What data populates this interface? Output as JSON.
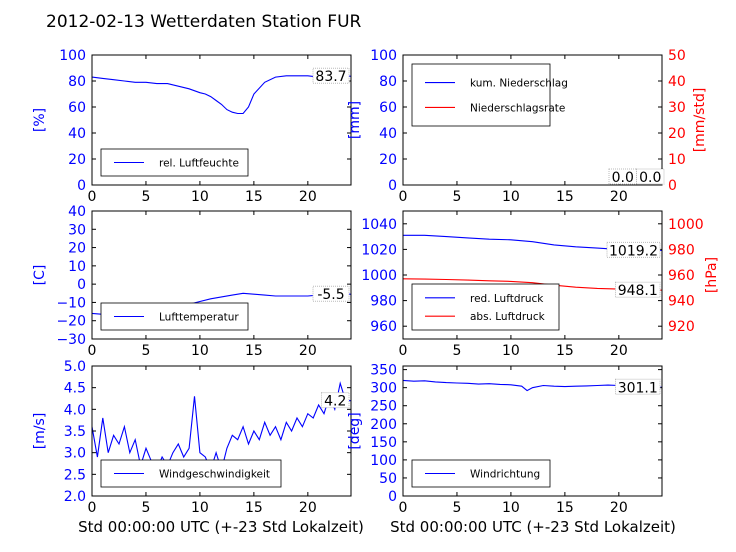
{
  "title": "2012-02-13 Wetterdaten Station FUR",
  "xlabel": "Std 00:00:00 UTC (+-23 Std Lokalzeit)",
  "colors": {
    "blue": "#0000ff",
    "red": "#ff0000",
    "light_blue": "#7f7fff",
    "black": "#000000"
  },
  "chart_data": [
    {
      "type": "line",
      "panel": "top-left",
      "ylabel": "[%]",
      "xlim": [
        0,
        24
      ],
      "ylim": [
        0,
        100
      ],
      "xticks": [
        "0",
        "5",
        "10",
        "15",
        "20"
      ],
      "yticks": [
        "0",
        "20",
        "40",
        "60",
        "80",
        "100"
      ],
      "legend": {
        "position": "lower-left"
      },
      "value_labels": [
        {
          "text": "83.7",
          "value": 83.7
        }
      ],
      "series": [
        {
          "name": "rel. Luftfeuchte",
          "color": "#0000ff",
          "x": [
            0,
            1,
            2,
            3,
            4,
            5,
            6,
            7,
            8,
            9,
            10,
            10.5,
            11,
            11.5,
            12,
            12.5,
            13,
            13.5,
            14,
            14.5,
            15,
            16,
            17,
            18,
            19,
            20,
            21,
            22,
            23,
            24
          ],
          "y": [
            83,
            82,
            81,
            80,
            79,
            79,
            78,
            78,
            76,
            74,
            71,
            70,
            68,
            65,
            62,
            58,
            56,
            55,
            55,
            60,
            70,
            79,
            83,
            84,
            84,
            84,
            83,
            83,
            83.5,
            83.7
          ]
        }
      ]
    },
    {
      "type": "line",
      "panel": "top-right",
      "ylabel": "[mm]",
      "ylabel2": "[mm/std]",
      "xlim": [
        0,
        24
      ],
      "ylim": [
        0,
        100
      ],
      "ylim2": [
        0,
        50
      ],
      "xticks": [
        "0",
        "5",
        "10",
        "15",
        "20"
      ],
      "yticks": [
        "0",
        "20",
        "40",
        "60",
        "80",
        "100"
      ],
      "yticks2": [
        "0",
        "10",
        "20",
        "30",
        "40",
        "50"
      ],
      "legend": {
        "position": "upper-left"
      },
      "value_labels": [
        {
          "text": "0.0",
          "value": 0.0
        },
        {
          "text": "0.0",
          "value": 0.0
        }
      ],
      "series": [
        {
          "name": "kum. Niederschlag",
          "color": "#0000ff",
          "axis": "left",
          "x": [
            0,
            24
          ],
          "y": [
            0,
            0
          ]
        },
        {
          "name": "Niederschlagsrate",
          "color": "#ff0000",
          "axis": "right",
          "x": [
            0,
            24
          ],
          "y": [
            0,
            0
          ]
        }
      ]
    },
    {
      "type": "line",
      "panel": "middle-left",
      "ylabel": "[C]",
      "xlim": [
        0,
        24
      ],
      "ylim": [
        -30,
        40
      ],
      "xticks": [
        "0",
        "5",
        "10",
        "15",
        "20"
      ],
      "yticks": [
        "−30",
        "−20",
        "−10",
        "0",
        "10",
        "20",
        "30",
        "40"
      ],
      "legend": {
        "position": "lower-left"
      },
      "value_labels": [
        {
          "text": "-5.5",
          "value": -5.5
        }
      ],
      "series": [
        {
          "name": "Lufttemperatur",
          "color": "#0000ff",
          "x": [
            0,
            1,
            2,
            3,
            4,
            5,
            6,
            7,
            8,
            9,
            10,
            11,
            12,
            13,
            14,
            15,
            16,
            17,
            18,
            19,
            20,
            21,
            22,
            23,
            24
          ],
          "y": [
            -16,
            -16.5,
            -16.5,
            -17,
            -17,
            -16,
            -15,
            -13,
            -12,
            -11,
            -9.5,
            -8,
            -7,
            -6,
            -5,
            -5.5,
            -6,
            -6.5,
            -6.5,
            -6.5,
            -6.5,
            -6,
            -5.8,
            -5.6,
            -5.5
          ]
        }
      ]
    },
    {
      "type": "line",
      "panel": "middle-right",
      "ylabel": "[hPa]",
      "xlim": [
        0,
        24
      ],
      "ylim": [
        950,
        1050
      ],
      "ylim2": [
        910,
        1010
      ],
      "xticks": [
        "0",
        "5",
        "10",
        "15",
        "20"
      ],
      "yticks": [
        "960",
        "980",
        "1000",
        "1020",
        "1040"
      ],
      "yticks2": [
        "920",
        "940",
        "960",
        "980",
        "1000"
      ],
      "legend": {
        "position": "lower-left"
      },
      "value_labels": [
        {
          "text": "1019.2",
          "value": 1019.2
        },
        {
          "text": "948.1",
          "value": 948.1
        }
      ],
      "series": [
        {
          "name": "red. Luftdruck",
          "color": "#0000ff",
          "axis": "left",
          "x": [
            0,
            2,
            4,
            6,
            8,
            10,
            12,
            14,
            16,
            18,
            20,
            22,
            24
          ],
          "y": [
            1031,
            1031,
            1030,
            1029,
            1028,
            1027.5,
            1026,
            1023.5,
            1022,
            1021,
            1020,
            1019.5,
            1019.2
          ]
        },
        {
          "name": "abs. Luftdruck",
          "color": "#ff0000",
          "axis": "right",
          "x": [
            0,
            2,
            4,
            6,
            8,
            10,
            12,
            14,
            16,
            18,
            20,
            22,
            24
          ],
          "y": [
            957,
            956.8,
            956.5,
            956,
            955.5,
            955,
            954,
            952,
            950.5,
            949.5,
            949,
            948.5,
            948.1
          ]
        }
      ]
    },
    {
      "type": "line",
      "panel": "bottom-left",
      "ylabel": "[m/s]",
      "xlim": [
        0,
        24
      ],
      "ylim": [
        2.0,
        5.0
      ],
      "xticks": [
        "0",
        "5",
        "10",
        "15",
        "20"
      ],
      "yticks": [
        "2.0",
        "2.5",
        "3.0",
        "3.5",
        "4.0",
        "4.5",
        "5.0"
      ],
      "legend": {
        "position": "lower-left"
      },
      "value_labels": [
        {
          "text": "4.2",
          "value": 4.2
        }
      ],
      "series": [
        {
          "name": "Windgeschwindigkeit",
          "color": "#0000ff",
          "x": [
            0,
            0.5,
            1,
            1.5,
            2,
            2.5,
            3,
            3.5,
            4,
            4.5,
            5,
            5.5,
            6,
            6.5,
            7,
            7.5,
            8,
            8.5,
            9,
            9.5,
            10,
            10.5,
            11,
            11.5,
            12,
            12.5,
            13,
            13.5,
            14,
            14.5,
            15,
            15.5,
            16,
            16.5,
            17,
            17.5,
            18,
            18.5,
            19,
            19.5,
            20,
            20.5,
            21,
            21.5,
            22,
            22.5,
            23,
            23.5,
            24
          ],
          "y": [
            3.6,
            2.9,
            3.8,
            3.0,
            3.4,
            3.2,
            3.6,
            3.0,
            3.3,
            2.7,
            3.1,
            2.8,
            2.6,
            2.9,
            2.7,
            3.0,
            3.2,
            2.9,
            3.1,
            4.3,
            3.0,
            2.9,
            2.6,
            3.0,
            2.6,
            3.1,
            3.4,
            3.3,
            3.6,
            3.2,
            3.5,
            3.3,
            3.7,
            3.4,
            3.6,
            3.3,
            3.7,
            3.5,
            3.8,
            3.6,
            3.9,
            3.8,
            4.1,
            3.9,
            4.3,
            4.0,
            4.6,
            4.2,
            4.2
          ]
        }
      ]
    },
    {
      "type": "line",
      "panel": "bottom-right",
      "ylabel": "[deg]",
      "xlim": [
        0,
        24
      ],
      "ylim": [
        0,
        360
      ],
      "xticks": [
        "0",
        "5",
        "10",
        "15",
        "20"
      ],
      "yticks": [
        "0",
        "50",
        "100",
        "150",
        "200",
        "250",
        "300",
        "350"
      ],
      "legend": {
        "position": "lower-left"
      },
      "value_labels": [
        {
          "text": "301.1",
          "value": 301.1
        }
      ],
      "series": [
        {
          "name": "Windrichtung",
          "color": "#0000ff",
          "x": [
            0,
            1,
            2,
            3,
            4,
            5,
            6,
            7,
            8,
            9,
            10,
            11,
            11.5,
            12,
            13,
            14,
            15,
            16,
            17,
            18,
            19,
            20,
            21,
            22,
            23,
            24
          ],
          "y": [
            320,
            318,
            319,
            316,
            314,
            313,
            312,
            310,
            311,
            309,
            308,
            304,
            292,
            300,
            306,
            304,
            303,
            304,
            305,
            306,
            307,
            306,
            308,
            305,
            303,
            301.1
          ]
        }
      ]
    }
  ]
}
